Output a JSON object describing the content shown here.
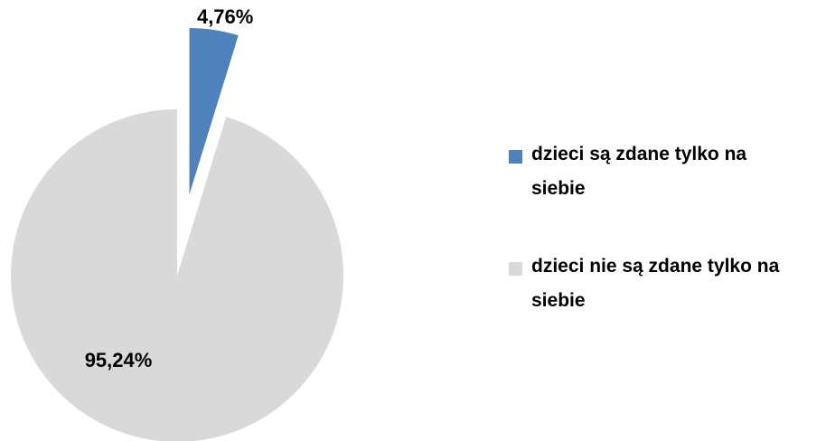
{
  "chart_data": {
    "type": "pie",
    "categories": [
      "dzieci są zdane tylko na siebie",
      "dzieci nie są zdane tylko na siebie"
    ],
    "values": [
      4.76,
      95.24
    ],
    "value_labels": [
      "4,76%",
      "95,24%"
    ],
    "colors": [
      "#4f81bd",
      "#d9d9d9"
    ],
    "legend": "right"
  }
}
